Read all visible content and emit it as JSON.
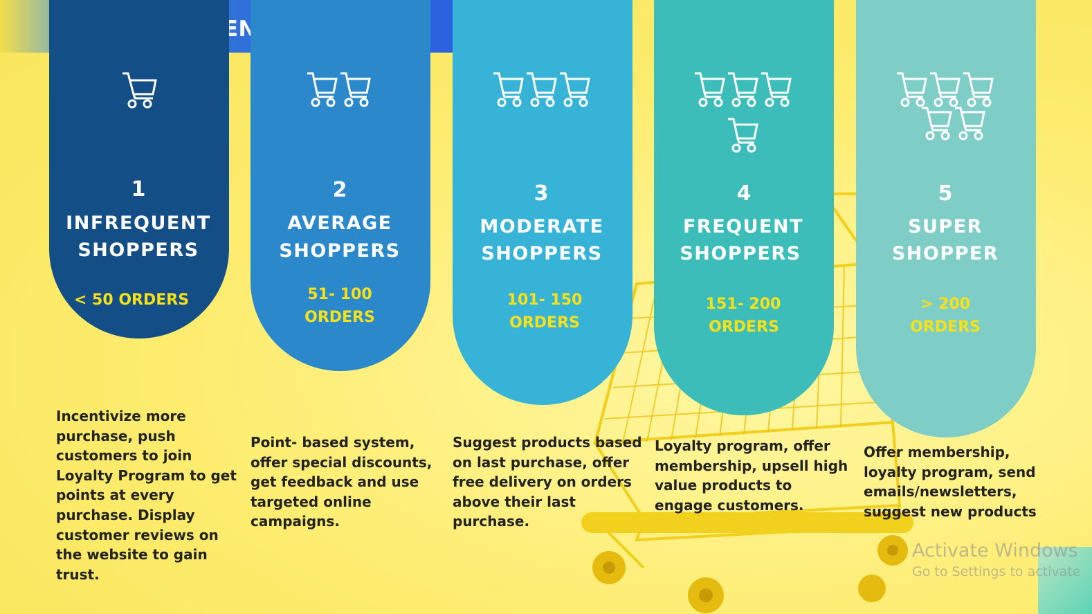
{
  "title": "RECOMMENDATIONS",
  "colors": {
    "banner": "#2a67e0",
    "tier1": "#134e86",
    "tier2": "#2b88cb",
    "tier3": "#37b3d8",
    "tier4": "#3cbdb9",
    "tier5": "#7fcdc7",
    "orders_text": "#f6e11a",
    "background": "#fdec6e"
  },
  "icon": "shopping-cart-icon",
  "tiers": [
    {
      "number": "1",
      "name_line1": "INFREQUENT",
      "name_line2": "SHOPPERS",
      "orders_line1": "< 50 ORDERS",
      "orders_line2": "",
      "cart_count": 1,
      "description": "Incentivize more\npurchase, push\ncustomers to join\nLoyalty Program to get\npoints at every\npurchase. Display\n customer reviews on\nthe website to gain\n trust."
    },
    {
      "number": "2",
      "name_line1": "AVERAGE",
      "name_line2": "SHOPPERS",
      "orders_line1": "51- 100",
      "orders_line2": "ORDERS",
      "cart_count": 2,
      "description": "Point- based system,\noffer special discounts,\nget feedback  and use\ntargeted  online\ncampaigns."
    },
    {
      "number": "3",
      "name_line1": "MODERATE",
      "name_line2": "SHOPPERS",
      "orders_line1": "101- 150",
      "orders_line2": "ORDERS",
      "cart_count": 3,
      "description": "Suggest products based\non last purchase, offer\n free delivery on orders\nabove their last\npurchase."
    },
    {
      "number": "4",
      "name_line1": "FREQUENT",
      "name_line2": "SHOPPERS",
      "orders_line1": "151- 200",
      "orders_line2": "ORDERS",
      "cart_count": 4,
      "description": "Loyalty program, offer\nmembership, upsell high\nvalue products to\nengage customers."
    },
    {
      "number": "5",
      "name_line1": "SUPER",
      "name_line2": "SHOPPER",
      "orders_line1": "> 200",
      "orders_line2": "ORDERS",
      "cart_count": 5,
      "description": "Offer membership,\nloyalty program, send\nemails/newsletters,\nsuggest new products"
    }
  ],
  "watermark": {
    "line1": "Activate Windows",
    "line2": "Go to Settings to activate"
  }
}
